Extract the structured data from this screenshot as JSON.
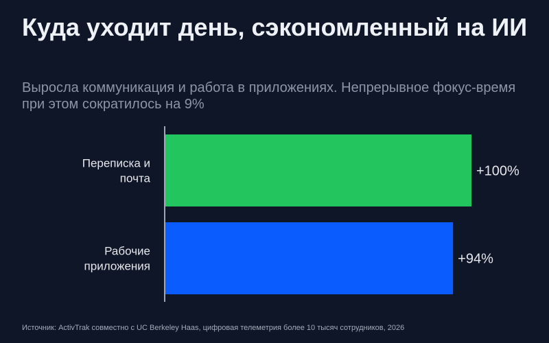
{
  "header": {
    "title": "Куда уходит день, сэкономленный на ИИ",
    "subtitle": "Выросла коммуникация и работа в приложениях. Непрерывное фокус-время при этом сократилось на 9%"
  },
  "footer": {
    "source": "Источник: ActivTrak совместно с UC Berkeley Haas, цифровая телеметрия более 10 тысяч сотрудников, 2026"
  },
  "colors": {
    "background": "#0f1628",
    "bar_email": "#22c55e",
    "bar_apps": "#0a5cff",
    "axis": "#a0a8b8",
    "label": "#e5e7eb"
  },
  "chart_data": {
    "type": "bar",
    "orientation": "horizontal",
    "categories": [
      [
        "Переписка и",
        "почта"
      ],
      [
        "Рабочие",
        "приложения"
      ]
    ],
    "values": [
      100,
      94
    ],
    "value_labels": [
      "+100%",
      "+94%"
    ],
    "bar_colors": [
      "#22c55e",
      "#0a5cff"
    ],
    "xlim": [
      0,
      100
    ],
    "grid": false,
    "legend": "none"
  }
}
